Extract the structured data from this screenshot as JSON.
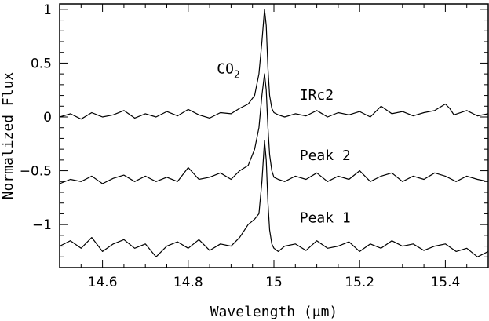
{
  "chart_data": {
    "type": "line",
    "title": "",
    "xlabel": "Wavelength (μm)",
    "ylabel": "Normalized Flux",
    "xlim": [
      14.5,
      15.5
    ],
    "ylim": [
      -1.4,
      1.05
    ],
    "x_ticks": [
      14.6,
      14.8,
      15.0,
      15.2,
      15.4
    ],
    "x_tick_labels": [
      "14.6",
      "14.8",
      "15",
      "15.2",
      "15.4"
    ],
    "y_ticks": [
      1,
      0.5,
      0,
      -0.5,
      -1
    ],
    "y_tick_labels": [
      "1",
      "0.5",
      "0",
      "−0.5",
      "−1"
    ],
    "grid": false,
    "annotation": {
      "text": "CO",
      "subscript": "2",
      "x": 14.94,
      "y": 0.45
    },
    "series": [
      {
        "name": "IRc2",
        "label_pos": {
          "x": 15.06,
          "y": 0.16
        },
        "x": [
          14.5,
          14.525,
          14.55,
          14.575,
          14.6,
          14.625,
          14.65,
          14.675,
          14.7,
          14.725,
          14.75,
          14.775,
          14.8,
          14.825,
          14.85,
          14.875,
          14.9,
          14.92,
          14.94,
          14.955,
          14.965,
          14.972,
          14.978,
          14.982,
          14.986,
          14.99,
          14.995,
          15.0,
          15.01,
          15.025,
          15.05,
          15.075,
          15.1,
          15.125,
          15.15,
          15.175,
          15.2,
          15.225,
          15.25,
          15.275,
          15.3,
          15.325,
          15.35,
          15.375,
          15.4,
          15.41,
          15.42,
          15.45,
          15.475,
          15.5
        ],
        "values": [
          0.0,
          0.03,
          -0.02,
          0.04,
          0.0,
          0.02,
          0.06,
          -0.01,
          0.03,
          0.0,
          0.05,
          0.01,
          0.07,
          0.02,
          -0.01,
          0.04,
          0.03,
          0.08,
          0.12,
          0.2,
          0.4,
          0.7,
          1.0,
          0.85,
          0.45,
          0.2,
          0.08,
          0.04,
          0.02,
          0.0,
          0.03,
          0.01,
          0.06,
          0.0,
          0.04,
          0.02,
          0.05,
          0.0,
          0.1,
          0.03,
          0.05,
          0.01,
          0.04,
          0.06,
          0.12,
          0.08,
          0.02,
          0.06,
          0.01,
          0.03
        ]
      },
      {
        "name": "Peak 2",
        "label_pos": {
          "x": 15.06,
          "y": -0.4
        },
        "x": [
          14.5,
          14.525,
          14.55,
          14.575,
          14.6,
          14.625,
          14.65,
          14.675,
          14.7,
          14.725,
          14.75,
          14.775,
          14.8,
          14.825,
          14.85,
          14.875,
          14.9,
          14.92,
          14.94,
          14.955,
          14.965,
          14.972,
          14.978,
          14.982,
          14.986,
          14.99,
          14.995,
          15.0,
          15.01,
          15.025,
          15.05,
          15.075,
          15.1,
          15.125,
          15.15,
          15.175,
          15.2,
          15.225,
          15.25,
          15.275,
          15.3,
          15.325,
          15.35,
          15.375,
          15.4,
          15.425,
          15.45,
          15.475,
          15.5
        ],
        "values": [
          -0.62,
          -0.58,
          -0.6,
          -0.55,
          -0.62,
          -0.57,
          -0.54,
          -0.6,
          -0.55,
          -0.6,
          -0.56,
          -0.6,
          -0.47,
          -0.58,
          -0.56,
          -0.52,
          -0.58,
          -0.5,
          -0.45,
          -0.3,
          -0.1,
          0.2,
          0.4,
          0.25,
          -0.1,
          -0.35,
          -0.5,
          -0.56,
          -0.58,
          -0.6,
          -0.55,
          -0.58,
          -0.52,
          -0.6,
          -0.55,
          -0.58,
          -0.5,
          -0.6,
          -0.55,
          -0.52,
          -0.6,
          -0.55,
          -0.58,
          -0.52,
          -0.55,
          -0.6,
          -0.55,
          -0.58,
          -0.6
        ]
      },
      {
        "name": "Peak 1",
        "label_pos": {
          "x": 15.06,
          "y": -0.98
        },
        "x": [
          14.5,
          14.525,
          14.55,
          14.575,
          14.6,
          14.625,
          14.65,
          14.675,
          14.7,
          14.725,
          14.75,
          14.775,
          14.8,
          14.825,
          14.85,
          14.875,
          14.9,
          14.92,
          14.94,
          14.955,
          14.965,
          14.972,
          14.978,
          14.982,
          14.986,
          14.99,
          14.995,
          15.0,
          15.01,
          15.025,
          15.05,
          15.075,
          15.1,
          15.125,
          15.15,
          15.175,
          15.2,
          15.225,
          15.25,
          15.275,
          15.3,
          15.325,
          15.35,
          15.375,
          15.4,
          15.425,
          15.45,
          15.475,
          15.5
        ],
        "values": [
          -1.2,
          -1.15,
          -1.22,
          -1.12,
          -1.25,
          -1.18,
          -1.14,
          -1.22,
          -1.18,
          -1.3,
          -1.2,
          -1.16,
          -1.22,
          -1.14,
          -1.24,
          -1.18,
          -1.2,
          -1.12,
          -1.0,
          -0.95,
          -0.9,
          -0.6,
          -0.22,
          -0.4,
          -0.8,
          -1.05,
          -1.18,
          -1.22,
          -1.25,
          -1.2,
          -1.18,
          -1.24,
          -1.15,
          -1.22,
          -1.2,
          -1.16,
          -1.25,
          -1.18,
          -1.22,
          -1.15,
          -1.2,
          -1.18,
          -1.24,
          -1.2,
          -1.18,
          -1.25,
          -1.22,
          -1.3,
          -1.25
        ]
      }
    ]
  }
}
